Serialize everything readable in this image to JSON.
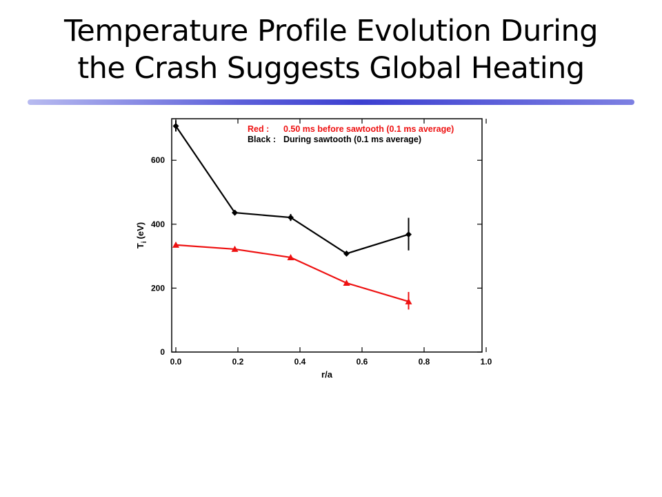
{
  "slide": {
    "title_line1": "Temperature Profile Evolution During",
    "title_line2": "the Crash Suggests Global Heating"
  },
  "chart_data": {
    "type": "line",
    "title": "",
    "xlabel": "r/a",
    "ylabel_main": "T",
    "ylabel_sub": "i",
    "ylabel_unit": "(eV)",
    "xlim": [
      0.0,
      1.0
    ],
    "ylim": [
      0,
      730
    ],
    "xticks": [
      0.0,
      0.2,
      0.4,
      0.6,
      0.8,
      1.0
    ],
    "xtick_labels": [
      "0.0",
      "0.2",
      "0.4",
      "0.6",
      "0.8",
      "1.0"
    ],
    "yticks": [
      0,
      200,
      400,
      600
    ],
    "ytick_labels": [
      "0",
      "200",
      "400",
      "600"
    ],
    "grid": false,
    "legend_position": "top-right",
    "series": [
      {
        "name": "Red : 0.50 ms before sawtooth (0.1 ms average)",
        "color": "#ee1111",
        "marker": "triangle",
        "x": [
          0.0,
          0.19,
          0.37,
          0.55,
          0.75
        ],
        "y": [
          335,
          322,
          296,
          216,
          158
        ],
        "error_low": [
          null,
          null,
          null,
          null,
          133
        ],
        "error_high": [
          null,
          null,
          null,
          null,
          188
        ]
      },
      {
        "name": "Black : During sawtooth (0.1 ms average)",
        "color": "#000000",
        "marker": "diamond",
        "x": [
          0.0,
          0.19,
          0.37,
          0.55,
          0.75
        ],
        "y": [
          707,
          436,
          421,
          308,
          368
        ],
        "error_low": [
          690,
          null,
          410,
          null,
          318
        ],
        "error_high": [
          725,
          null,
          432,
          null,
          420
        ]
      }
    ],
    "legend": [
      {
        "prefix": "Red :",
        "text": "0.50 ms before sawtooth (0.1 ms average)",
        "color": "#ee1111"
      },
      {
        "prefix": "Black :",
        "text": "During sawtooth (0.1 ms average)",
        "color": "#000000"
      }
    ]
  }
}
